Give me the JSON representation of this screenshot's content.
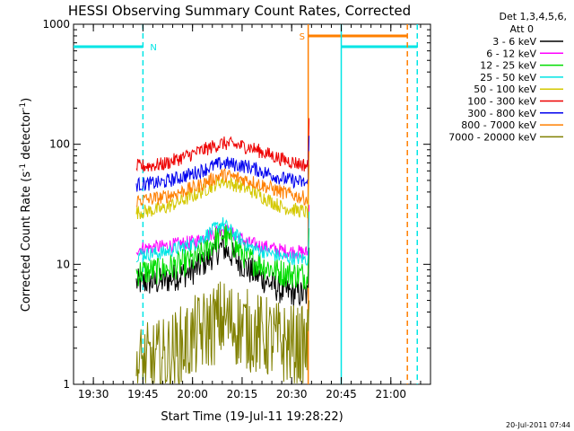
{
  "chart_data": {
    "type": "line",
    "title": "HESSI Observing Summary Count Rates, Corrected",
    "xlabel": "Start Time (19-Jul-11 19:28:22)",
    "ylabel_main": "Corrected Count Rate (s",
    "ylabel_sup1": "-1",
    "ylabel_mid": " detector",
    "ylabel_sup2": "-1",
    "ylabel_end": ")",
    "yscale": "log",
    "ylim": [
      1,
      1000
    ],
    "xlim": [
      "19:24",
      "21:12"
    ],
    "x_ticks": [
      "19:30",
      "19:45",
      "20:00",
      "20:15",
      "20:30",
      "20:45",
      "21:00"
    ],
    "y_ticks": [
      {
        "value": 1,
        "label": "1"
      },
      {
        "value": 10,
        "label": "10"
      },
      {
        "value": 100,
        "label": "100"
      },
      {
        "value": 1000,
        "label": "1000"
      }
    ],
    "data_start": "19:43",
    "data_end": "20:35",
    "legend_header": [
      "Det 1,3,4,5,6,",
      "Att 0"
    ],
    "legend_position": "right",
    "series": [
      {
        "name": "3 - 6 keV",
        "color": "#000000",
        "values": [
          [
            0,
            7
          ],
          [
            8,
            7.2
          ],
          [
            18,
            9
          ],
          [
            26,
            14
          ],
          [
            34,
            9
          ],
          [
            44,
            6
          ],
          [
            52,
            5.5
          ]
        ]
      },
      {
        "name": "6 - 12 keV",
        "color": "#ff00ff",
        "values": [
          [
            0,
            13.5
          ],
          [
            8,
            14
          ],
          [
            18,
            15.5
          ],
          [
            26,
            20
          ],
          [
            34,
            15
          ],
          [
            44,
            13
          ],
          [
            52,
            12.5
          ]
        ]
      },
      {
        "name": "12 - 25 keV",
        "color": "#00dd00",
        "values": [
          [
            0,
            8.5
          ],
          [
            8,
            9
          ],
          [
            18,
            11
          ],
          [
            26,
            18
          ],
          [
            34,
            11
          ],
          [
            44,
            8.5
          ],
          [
            52,
            8
          ]
        ]
      },
      {
        "name": "25 - 50 keV",
        "color": "#00e5e5",
        "values": [
          [
            0,
            12
          ],
          [
            8,
            12.5
          ],
          [
            18,
            15
          ],
          [
            26,
            22
          ],
          [
            34,
            14
          ],
          [
            44,
            11.5
          ],
          [
            52,
            11
          ]
        ]
      },
      {
        "name": "50 - 100 keV",
        "color": "#d4c800",
        "values": [
          [
            0,
            27
          ],
          [
            8,
            29
          ],
          [
            18,
            38
          ],
          [
            26,
            50
          ],
          [
            34,
            42
          ],
          [
            44,
            30
          ],
          [
            52,
            27
          ]
        ]
      },
      {
        "name": "100 - 300 keV",
        "color": "#ee0000",
        "values": [
          [
            0,
            65
          ],
          [
            8,
            68
          ],
          [
            18,
            85
          ],
          [
            26,
            102
          ],
          [
            34,
            95
          ],
          [
            44,
            75
          ],
          [
            52,
            66
          ]
        ]
      },
      {
        "name": "300 - 800 keV",
        "color": "#0000ee",
        "values": [
          [
            0,
            46
          ],
          [
            8,
            48
          ],
          [
            18,
            58
          ],
          [
            26,
            70
          ],
          [
            34,
            65
          ],
          [
            44,
            52
          ],
          [
            52,
            47
          ]
        ]
      },
      {
        "name": "800 - 7000 keV",
        "color": "#ff7f00",
        "values": [
          [
            0,
            34
          ],
          [
            8,
            36
          ],
          [
            18,
            44
          ],
          [
            26,
            56
          ],
          [
            34,
            50
          ],
          [
            44,
            40
          ],
          [
            52,
            35
          ]
        ]
      },
      {
        "name": "7000 - 20000 keV",
        "color": "#808000",
        "values": [
          [
            0,
            1.4
          ],
          [
            8,
            1.6
          ],
          [
            18,
            2.5
          ],
          [
            26,
            3.5
          ],
          [
            34,
            2.8
          ],
          [
            44,
            2.2
          ],
          [
            52,
            2
          ]
        ]
      }
    ],
    "flags": [
      {
        "label": "N",
        "color": "#00e5e5",
        "segments": [
          [
            "19:24",
            "19:45"
          ],
          [
            "20:45",
            "21:08"
          ]
        ],
        "level": 650
      },
      {
        "label": "S",
        "color": "#ff7f00",
        "segments": [
          [
            "20:35",
            "21:05"
          ]
        ],
        "level": 800
      }
    ],
    "vlines": [
      {
        "time": "19:45",
        "color": "#00e5e5",
        "style": "dashed"
      },
      {
        "time": "20:35",
        "color": "#ff7f00",
        "style": "solid"
      },
      {
        "time": "20:45",
        "color": "#00e5e5",
        "style": "solid"
      },
      {
        "time": "21:05",
        "color": "#ff7f00",
        "style": "dashed"
      },
      {
        "time": "21:08",
        "color": "#00e5e5",
        "style": "dashed"
      }
    ],
    "timestamp": "20-Jul-2011 07:44"
  }
}
